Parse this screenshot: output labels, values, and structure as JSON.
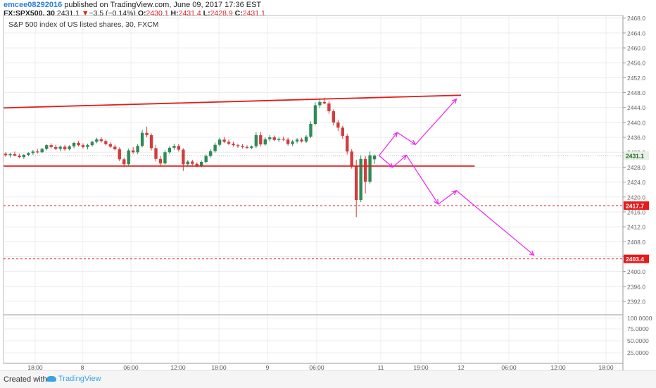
{
  "header": {
    "username": "emcee08292016",
    "published_text": "published on TradingView.com, June 09, 2017 17:36 EST",
    "symbol": "FX:SPX500, 30",
    "last_price": "2431.1",
    "change_arrow": "▼",
    "change": "−3.5 (−0.14%)",
    "open_label": "O:",
    "open": "2430.1",
    "high_label": "H:",
    "high": "2431.4",
    "low_label": "L:",
    "low": "2428.9",
    "close_label": "C:",
    "close": "2431.1"
  },
  "chart_data": {
    "type": "candlestick",
    "title": "S&P 500 index of US listed shares, 30, FXCM",
    "y_ticks": [
      "2468.0",
      "2464.0",
      "2460.0",
      "2456.0",
      "2452.0",
      "2448.0",
      "2444.0",
      "2440.0",
      "2436.0",
      "2432.0",
      "2428.0",
      "2424.0",
      "2420.0",
      "2416.0",
      "2412.0",
      "2408.0",
      "2404.0",
      "2400.0",
      "2396.0",
      "2392.0"
    ],
    "x_ticks": [
      "18:00",
      "8",
      "06:00",
      "12:00",
      "18:00",
      "9",
      "06:00",
      "11",
      "19:00",
      "12",
      "06:00",
      "12:00",
      "18:00"
    ],
    "price_badges": {
      "last": "2431.1",
      "level_1": "2417.7",
      "level_2": "2403.4"
    },
    "candles": [
      {
        "o": 2431.6,
        "h": 2432.0,
        "l": 2430.8,
        "c": 2431.2
      },
      {
        "o": 2431.2,
        "h": 2431.9,
        "l": 2430.6,
        "c": 2431.5
      },
      {
        "o": 2431.5,
        "h": 2432.2,
        "l": 2430.9,
        "c": 2431.1
      },
      {
        "o": 2431.1,
        "h": 2431.6,
        "l": 2430.4,
        "c": 2430.7
      },
      {
        "o": 2430.7,
        "h": 2431.5,
        "l": 2430.2,
        "c": 2431.3
      },
      {
        "o": 2431.3,
        "h": 2432.0,
        "l": 2430.9,
        "c": 2431.8
      },
      {
        "o": 2431.8,
        "h": 2432.6,
        "l": 2431.3,
        "c": 2432.2
      },
      {
        "o": 2432.2,
        "h": 2432.9,
        "l": 2431.7,
        "c": 2432.0
      },
      {
        "o": 2432.0,
        "h": 2433.2,
        "l": 2431.8,
        "c": 2432.9
      },
      {
        "o": 2432.9,
        "h": 2434.2,
        "l": 2432.5,
        "c": 2433.9
      },
      {
        "o": 2433.9,
        "h": 2434.4,
        "l": 2433.0,
        "c": 2433.4
      },
      {
        "o": 2433.4,
        "h": 2434.0,
        "l": 2432.6,
        "c": 2432.9
      },
      {
        "o": 2432.9,
        "h": 2433.8,
        "l": 2432.3,
        "c": 2433.5
      },
      {
        "o": 2433.5,
        "h": 2434.0,
        "l": 2432.4,
        "c": 2432.8
      },
      {
        "o": 2432.8,
        "h": 2433.9,
        "l": 2432.5,
        "c": 2433.6
      },
      {
        "o": 2433.6,
        "h": 2434.8,
        "l": 2433.1,
        "c": 2434.5
      },
      {
        "o": 2434.5,
        "h": 2435.0,
        "l": 2433.6,
        "c": 2433.9
      },
      {
        "o": 2433.9,
        "h": 2434.4,
        "l": 2433.0,
        "c": 2433.4
      },
      {
        "o": 2433.4,
        "h": 2434.3,
        "l": 2432.8,
        "c": 2433.9
      },
      {
        "o": 2433.9,
        "h": 2435.1,
        "l": 2433.5,
        "c": 2434.8
      },
      {
        "o": 2434.8,
        "h": 2435.9,
        "l": 2434.4,
        "c": 2435.5
      },
      {
        "o": 2435.5,
        "h": 2436.0,
        "l": 2434.6,
        "c": 2435.0
      },
      {
        "o": 2435.0,
        "h": 2435.5,
        "l": 2433.8,
        "c": 2434.2
      },
      {
        "o": 2434.2,
        "h": 2434.7,
        "l": 2433.2,
        "c": 2433.5
      },
      {
        "o": 2433.5,
        "h": 2434.0,
        "l": 2432.5,
        "c": 2432.8
      },
      {
        "o": 2432.8,
        "h": 2433.3,
        "l": 2429.6,
        "c": 2430.1
      },
      {
        "o": 2430.1,
        "h": 2430.6,
        "l": 2428.0,
        "c": 2428.8
      },
      {
        "o": 2428.8,
        "h": 2433.0,
        "l": 2428.5,
        "c": 2432.5
      },
      {
        "o": 2432.5,
        "h": 2433.4,
        "l": 2431.6,
        "c": 2432.0
      },
      {
        "o": 2432.0,
        "h": 2434.2,
        "l": 2431.5,
        "c": 2433.7
      },
      {
        "o": 2433.7,
        "h": 2438.0,
        "l": 2433.3,
        "c": 2437.2
      },
      {
        "o": 2437.2,
        "h": 2438.9,
        "l": 2436.0,
        "c": 2436.6
      },
      {
        "o": 2436.6,
        "h": 2437.1,
        "l": 2432.5,
        "c": 2433.1
      },
      {
        "o": 2433.1,
        "h": 2434.0,
        "l": 2429.5,
        "c": 2430.2
      },
      {
        "o": 2430.2,
        "h": 2431.0,
        "l": 2428.2,
        "c": 2429.0
      },
      {
        "o": 2429.0,
        "h": 2432.6,
        "l": 2428.7,
        "c": 2432.0
      },
      {
        "o": 2432.0,
        "h": 2433.6,
        "l": 2431.5,
        "c": 2433.2
      },
      {
        "o": 2433.2,
        "h": 2434.3,
        "l": 2432.6,
        "c": 2433.7
      },
      {
        "o": 2433.7,
        "h": 2434.2,
        "l": 2432.2,
        "c": 2432.7
      },
      {
        "o": 2432.7,
        "h": 2433.1,
        "l": 2427.0,
        "c": 2428.8
      },
      {
        "o": 2428.8,
        "h": 2429.9,
        "l": 2428.4,
        "c": 2429.5
      },
      {
        "o": 2429.5,
        "h": 2430.0,
        "l": 2428.5,
        "c": 2428.9
      },
      {
        "o": 2428.9,
        "h": 2429.3,
        "l": 2428.0,
        "c": 2428.4
      },
      {
        "o": 2428.4,
        "h": 2429.8,
        "l": 2428.0,
        "c": 2429.4
      },
      {
        "o": 2429.4,
        "h": 2431.4,
        "l": 2429.0,
        "c": 2431.0
      },
      {
        "o": 2431.0,
        "h": 2432.8,
        "l": 2430.6,
        "c": 2432.3
      },
      {
        "o": 2432.3,
        "h": 2434.6,
        "l": 2431.9,
        "c": 2434.0
      },
      {
        "o": 2434.0,
        "h": 2435.9,
        "l": 2433.6,
        "c": 2435.4
      },
      {
        "o": 2435.4,
        "h": 2436.1,
        "l": 2434.5,
        "c": 2434.8
      },
      {
        "o": 2434.8,
        "h": 2435.4,
        "l": 2433.9,
        "c": 2434.3
      },
      {
        "o": 2434.3,
        "h": 2434.8,
        "l": 2433.5,
        "c": 2433.9
      },
      {
        "o": 2433.9,
        "h": 2434.3,
        "l": 2433.2,
        "c": 2433.7
      },
      {
        "o": 2433.7,
        "h": 2434.2,
        "l": 2433.0,
        "c": 2433.4
      },
      {
        "o": 2433.4,
        "h": 2433.9,
        "l": 2432.9,
        "c": 2433.2
      },
      {
        "o": 2433.2,
        "h": 2433.8,
        "l": 2432.8,
        "c": 2433.6
      },
      {
        "o": 2433.6,
        "h": 2437.4,
        "l": 2433.2,
        "c": 2436.6
      },
      {
        "o": 2436.6,
        "h": 2437.5,
        "l": 2433.6,
        "c": 2434.1
      },
      {
        "o": 2434.1,
        "h": 2436.0,
        "l": 2433.8,
        "c": 2435.5
      },
      {
        "o": 2435.5,
        "h": 2436.6,
        "l": 2434.9,
        "c": 2436.0
      },
      {
        "o": 2436.0,
        "h": 2436.5,
        "l": 2435.0,
        "c": 2435.3
      },
      {
        "o": 2435.3,
        "h": 2436.0,
        "l": 2434.7,
        "c": 2435.6
      },
      {
        "o": 2435.6,
        "h": 2436.2,
        "l": 2435.0,
        "c": 2435.4
      },
      {
        "o": 2435.4,
        "h": 2435.9,
        "l": 2433.8,
        "c": 2434.2
      },
      {
        "o": 2434.2,
        "h": 2435.3,
        "l": 2433.7,
        "c": 2434.9
      },
      {
        "o": 2434.9,
        "h": 2435.8,
        "l": 2434.4,
        "c": 2435.4
      },
      {
        "o": 2435.4,
        "h": 2435.9,
        "l": 2434.6,
        "c": 2434.9
      },
      {
        "o": 2434.9,
        "h": 2436.6,
        "l": 2434.5,
        "c": 2436.2
      },
      {
        "o": 2436.2,
        "h": 2440.3,
        "l": 2435.8,
        "c": 2439.6
      },
      {
        "o": 2439.6,
        "h": 2445.4,
        "l": 2439.2,
        "c": 2444.6
      },
      {
        "o": 2444.6,
        "h": 2446.5,
        "l": 2443.9,
        "c": 2445.5
      },
      {
        "o": 2445.5,
        "h": 2446.6,
        "l": 2444.9,
        "c": 2445.1
      },
      {
        "o": 2445.1,
        "h": 2445.7,
        "l": 2442.3,
        "c": 2443.0
      },
      {
        "o": 2443.0,
        "h": 2443.5,
        "l": 2439.2,
        "c": 2440.0
      },
      {
        "o": 2440.0,
        "h": 2440.6,
        "l": 2437.7,
        "c": 2438.6
      },
      {
        "o": 2438.6,
        "h": 2439.1,
        "l": 2435.6,
        "c": 2436.4
      },
      {
        "o": 2436.4,
        "h": 2436.9,
        "l": 2431.4,
        "c": 2432.2
      },
      {
        "o": 2432.2,
        "h": 2432.8,
        "l": 2427.6,
        "c": 2428.2
      },
      {
        "o": 2428.2,
        "h": 2430.0,
        "l": 2414.6,
        "c": 2419.2
      },
      {
        "o": 2419.2,
        "h": 2431.2,
        "l": 2418.6,
        "c": 2430.2
      },
      {
        "o": 2430.2,
        "h": 2431.0,
        "l": 2421.0,
        "c": 2424.1
      },
      {
        "o": 2424.1,
        "h": 2432.2,
        "l": 2423.6,
        "c": 2431.2
      },
      {
        "o": 2430.1,
        "h": 2431.4,
        "l": 2428.9,
        "c": 2431.1
      }
    ],
    "trend_lines": [
      {
        "from": {
          "candle": 0,
          "price": 2443.9
        },
        "to": {
          "candle": 100,
          "price": 2447.3
        },
        "style": "solid"
      },
      {
        "from": {
          "candle": 0,
          "price": 2428.3
        },
        "to": {
          "candle": 103,
          "price": 2428.3
        },
        "style": "solid"
      }
    ],
    "horizontal_levels": [
      {
        "price": 2417.7,
        "style": "dashed"
      },
      {
        "price": 2403.4,
        "style": "dashed"
      }
    ],
    "projection_paths": [
      [
        {
          "candle": 82,
          "price": 2431.1
        },
        {
          "candle": 86,
          "price": 2437.3
        },
        {
          "candle": 90,
          "price": 2434.1
        },
        {
          "candle": 99,
          "price": 2446.3
        }
      ],
      [
        {
          "candle": 82,
          "price": 2431.1
        },
        {
          "candle": 85,
          "price": 2428.0
        },
        {
          "candle": 88,
          "price": 2431.2
        },
        {
          "candle": 95,
          "price": 2418.1
        },
        {
          "candle": 99,
          "price": 2421.7
        },
        {
          "candle": 116,
          "price": 2404.4
        }
      ]
    ],
    "indicator_ticks": [
      "100.0000",
      "75.0000",
      "50.0000",
      "25.0000"
    ],
    "colors": {
      "up": "#2e8b57",
      "down": "#d33c3c",
      "line": "#e51b1b",
      "projection": "#ee22ee",
      "badge": "#e51b1b"
    }
  },
  "footer": {
    "created_with": "Created with",
    "brand": "TradingView"
  }
}
